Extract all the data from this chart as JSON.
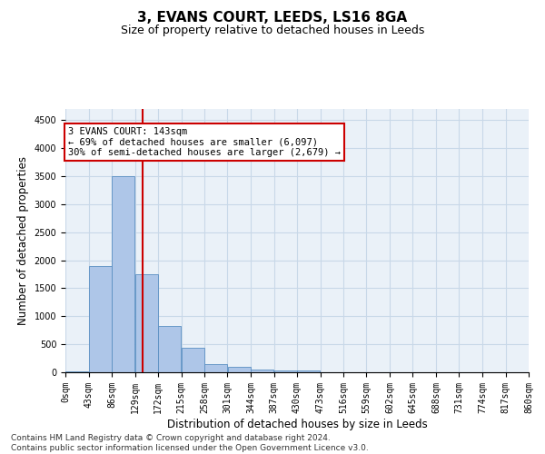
{
  "title": "3, EVANS COURT, LEEDS, LS16 8GA",
  "subtitle": "Size of property relative to detached houses in Leeds",
  "xlabel": "Distribution of detached houses by size in Leeds",
  "ylabel": "Number of detached properties",
  "bin_labels": [
    "0sqm",
    "43sqm",
    "86sqm",
    "129sqm",
    "172sqm",
    "215sqm",
    "258sqm",
    "301sqm",
    "344sqm",
    "387sqm",
    "430sqm",
    "473sqm",
    "516sqm",
    "559sqm",
    "602sqm",
    "645sqm",
    "688sqm",
    "731sqm",
    "774sqm",
    "817sqm",
    "860sqm"
  ],
  "bin_edges": [
    0,
    43,
    86,
    129,
    172,
    215,
    258,
    301,
    344,
    387,
    430,
    473,
    516,
    559,
    602,
    645,
    688,
    731,
    774,
    817,
    860
  ],
  "bar_values": [
    20,
    1890,
    3500,
    1750,
    830,
    440,
    150,
    90,
    55,
    40,
    25,
    5,
    0,
    0,
    0,
    0,
    0,
    0,
    0,
    0
  ],
  "bar_color": "#aec6e8",
  "bar_edge_color": "#5a8fc2",
  "property_line_x": 143,
  "property_line_color": "#cc0000",
  "annotation_text": "3 EVANS COURT: 143sqm\n← 69% of detached houses are smaller (6,097)\n30% of semi-detached houses are larger (2,679) →",
  "annotation_box_color": "#cc0000",
  "ylim": [
    0,
    4700
  ],
  "yticks": [
    0,
    500,
    1000,
    1500,
    2000,
    2500,
    3000,
    3500,
    4000,
    4500
  ],
  "grid_color": "#c8d8e8",
  "bg_color": "#eaf1f8",
  "footer_line1": "Contains HM Land Registry data © Crown copyright and database right 2024.",
  "footer_line2": "Contains public sector information licensed under the Open Government Licence v3.0.",
  "title_fontsize": 11,
  "subtitle_fontsize": 9,
  "axis_label_fontsize": 8.5,
  "tick_fontsize": 7,
  "annotation_fontsize": 7.5,
  "footer_fontsize": 6.5
}
